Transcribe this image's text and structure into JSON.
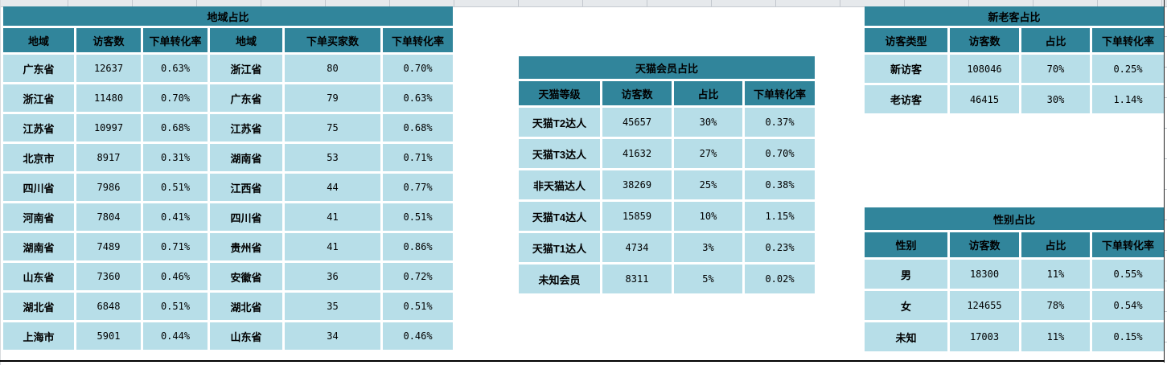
{
  "colors": {
    "header_teal": "#31859B",
    "cell_blue": "#B7DEE8",
    "grid_gray": "#C2C7CD",
    "border_black": "#000000"
  },
  "tables": {
    "region": {
      "title": "地域占比",
      "headers": [
        "地域",
        "访客数",
        "下单转化率",
        "地域",
        "下单买家数",
        "下单转化率"
      ],
      "rows": [
        [
          "广东省",
          "12637",
          "0.63%",
          "浙江省",
          "80",
          "0.70%"
        ],
        [
          "浙江省",
          "11480",
          "0.70%",
          "广东省",
          "79",
          "0.63%"
        ],
        [
          "江苏省",
          "10997",
          "0.68%",
          "江苏省",
          "75",
          "0.68%"
        ],
        [
          "北京市",
          "8917",
          "0.31%",
          "湖南省",
          "53",
          "0.71%"
        ],
        [
          "四川省",
          "7986",
          "0.51%",
          "江西省",
          "44",
          "0.77%"
        ],
        [
          "河南省",
          "7804",
          "0.41%",
          "四川省",
          "41",
          "0.51%"
        ],
        [
          "湖南省",
          "7489",
          "0.71%",
          "贵州省",
          "41",
          "0.86%"
        ],
        [
          "山东省",
          "7360",
          "0.46%",
          "安徽省",
          "36",
          "0.72%"
        ],
        [
          "湖北省",
          "6848",
          "0.51%",
          "湖北省",
          "35",
          "0.51%"
        ],
        [
          "上海市",
          "5901",
          "0.44%",
          "山东省",
          "34",
          "0.46%"
        ]
      ]
    },
    "tmall": {
      "title": "天猫会员占比",
      "headers": [
        "天猫等级",
        "访客数",
        "占比",
        "下单转化率"
      ],
      "rows": [
        [
          "天猫T2达人",
          "45657",
          "30%",
          "0.37%"
        ],
        [
          "天猫T3达人",
          "41632",
          "27%",
          "0.70%"
        ],
        [
          "非天猫达人",
          "38269",
          "25%",
          "0.38%"
        ],
        [
          "天猫T4达人",
          "15859",
          "10%",
          "1.15%"
        ],
        [
          "天猫T1达人",
          "4734",
          "3%",
          "0.23%"
        ],
        [
          "未知会员",
          "8311",
          "5%",
          "0.02%"
        ]
      ]
    },
    "visitor": {
      "title": "新老客占比",
      "headers": [
        "访客类型",
        "访客数",
        "占比",
        "下单转化率"
      ],
      "rows": [
        [
          "新访客",
          "108046",
          "70%",
          "0.25%"
        ],
        [
          "老访客",
          "46415",
          "30%",
          "1.14%"
        ]
      ]
    },
    "gender": {
      "title": "性别占比",
      "headers": [
        "性别",
        "访客数",
        "占比",
        "下单转化率"
      ],
      "rows": [
        [
          "男",
          "18300",
          "11%",
          "0.55%"
        ],
        [
          "女",
          "124655",
          "78%",
          "0.54%"
        ],
        [
          "未知",
          "17003",
          "11%",
          "0.15%"
        ]
      ]
    }
  }
}
